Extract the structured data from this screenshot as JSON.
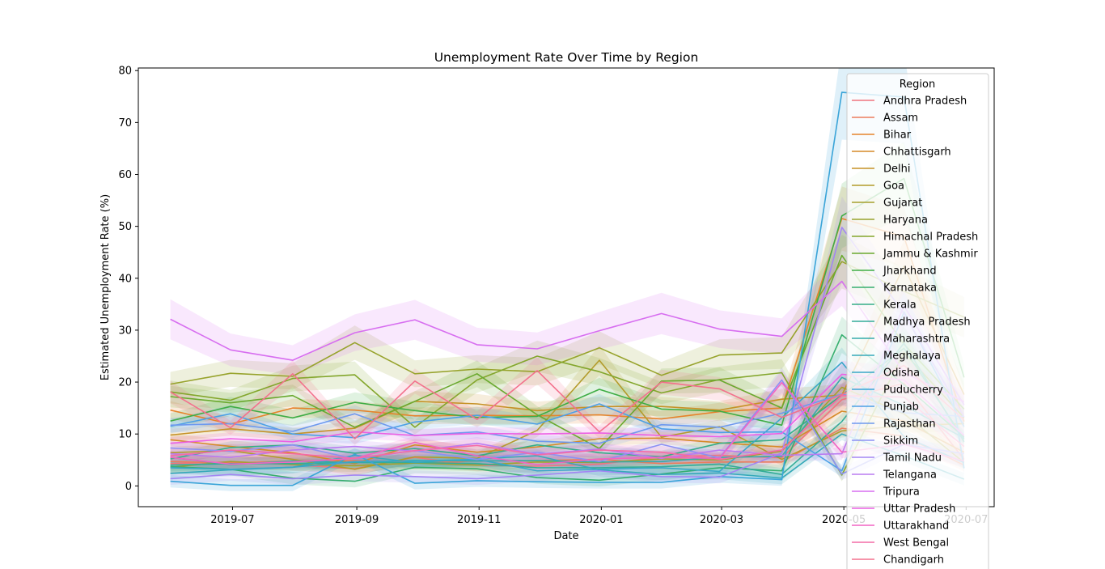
{
  "chart_data": {
    "type": "line",
    "title": "Unemployment Rate Over Time by Region",
    "xlabel": "Date",
    "ylabel": "Estimated Unemployment Rate (%)",
    "xlim": [
      "2019-05-15",
      "2020-07-15"
    ],
    "ylim": [
      -4,
      80.5
    ],
    "x_ticks": [
      "2019-07",
      "2019-09",
      "2019-11",
      "2020-01",
      "2020-03",
      "2020-05",
      "2020-07"
    ],
    "y_ticks": [
      0,
      10,
      20,
      30,
      40,
      50,
      60,
      70,
      80
    ],
    "grid": false,
    "legend": {
      "title": "Region",
      "placement": "right"
    },
    "x": [
      "2019-05-31",
      "2019-06-30",
      "2019-07-31",
      "2019-08-31",
      "2019-09-30",
      "2019-10-31",
      "2019-11-30",
      "2019-12-31",
      "2020-01-31",
      "2020-02-29",
      "2020-03-31",
      "2020-04-30",
      "2020-05-31",
      "2020-06-30"
    ],
    "series": [
      {
        "name": "Andhra Pradesh",
        "color": "#f0747f",
        "values": [
          4.3,
          4.6,
          4.1,
          3.3,
          5.5,
          4.0,
          3.8,
          4.2,
          5.6,
          5.9,
          5.4,
          16.6,
          19.8,
          5.1
        ]
      },
      {
        "name": "Assam",
        "color": "#ec7c5d",
        "values": [
          4.7,
          4.4,
          4.8,
          4.9,
          4.4,
          4.8,
          4.9,
          5.1,
          4.3,
          4.6,
          4.6,
          11.1,
          9.6,
          4.0
        ]
      },
      {
        "name": "Bihar",
        "color": "#e6832b",
        "values": [
          14.6,
          11.9,
          15.0,
          14.6,
          13.5,
          13.6,
          13.5,
          13.7,
          12.9,
          14.3,
          15.0,
          51.5,
          48.0,
          12.4
        ]
      },
      {
        "name": "Chhattisgarh",
        "color": "#d58a28",
        "values": [
          8.9,
          7.6,
          6.4,
          4.3,
          7.9,
          6.5,
          7.5,
          9.1,
          9.2,
          8.3,
          7.5,
          14.4,
          12.5,
          6.5
        ]
      },
      {
        "name": "Delhi",
        "color": "#c69227",
        "values": [
          9.8,
          11.0,
          10.0,
          11.1,
          16.3,
          15.8,
          14.5,
          15.3,
          15.3,
          14.6,
          16.7,
          17.5,
          42.3,
          17.6
        ]
      },
      {
        "name": "Goa",
        "color": "#b39b2b",
        "values": [
          6.4,
          6.8,
          5.1,
          3.2,
          5.6,
          5.3,
          10.7,
          24.2,
          9.4,
          11.4,
          5.1,
          10.6,
          11.6,
          12.0
        ]
      },
      {
        "name": "Gujarat",
        "color": "#a5a02d",
        "values": [
          3.6,
          4.7,
          4.1,
          3.9,
          4.4,
          4.0,
          4.6,
          4.5,
          5.2,
          5.0,
          6.7,
          19.0,
          13.9,
          4.5
        ]
      },
      {
        "name": "Haryana",
        "color": "#97a32c",
        "values": [
          19.6,
          21.7,
          21.1,
          27.6,
          21.6,
          22.5,
          22.0,
          26.6,
          21.3,
          25.2,
          25.6,
          43.2,
          37.5,
          32.5
        ]
      },
      {
        "name": "Himachal Pradesh",
        "color": "#83a62c",
        "values": [
          18.1,
          16.5,
          20.7,
          21.4,
          11.3,
          20.4,
          25.0,
          22.0,
          17.9,
          20.5,
          21.8,
          2.1,
          25.7,
          13.1
        ]
      },
      {
        "name": "Jammu & Kashmir",
        "color": "#6aa92f",
        "values": [
          17.2,
          16.0,
          17.4,
          11.3,
          16.3,
          21.6,
          13.7,
          7.2,
          20.2,
          20.4,
          15.0,
          44.4,
          27.3,
          14.8
        ]
      },
      {
        "name": "Jharkhand",
        "color": "#3fad45",
        "values": [
          12.5,
          15.3,
          13.1,
          16.1,
          14.5,
          13.2,
          13.4,
          18.6,
          14.8,
          14.4,
          11.7,
          52.0,
          59.2,
          20.9
        ]
      },
      {
        "name": "Karnataka",
        "color": "#36ae6f",
        "values": [
          3.7,
          3.2,
          1.5,
          0.9,
          3.6,
          3.3,
          1.6,
          1.1,
          2.3,
          3.5,
          2.9,
          29.1,
          19.5,
          9.4
        ]
      },
      {
        "name": "Kerala",
        "color": "#35ad87",
        "values": [
          5.2,
          7.4,
          7.9,
          6.3,
          7.2,
          5.8,
          7.9,
          6.4,
          5.6,
          8.2,
          8.9,
          17.5,
          26.5,
          9.0
        ]
      },
      {
        "name": "Madhya Pradesh",
        "color": "#34ac98",
        "values": [
          4.0,
          4.3,
          4.3,
          4.5,
          4.5,
          4.3,
          3.5,
          3.5,
          3.7,
          4.2,
          2.2,
          12.4,
          27.5,
          8.5
        ]
      },
      {
        "name": "Maharashtra",
        "color": "#35abab",
        "values": [
          5.5,
          4.1,
          4.8,
          4.5,
          4.9,
          4.8,
          4.9,
          4.6,
          4.7,
          5.5,
          5.7,
          20.9,
          15.5,
          9.2
        ]
      },
      {
        "name": "Meghalaya",
        "color": "#36a9b9",
        "values": [
          2.4,
          3.1,
          3.6,
          5.9,
          4.5,
          5.2,
          5.8,
          3.1,
          2.2,
          2.5,
          1.5,
          10.0,
          5.8,
          1.3
        ]
      },
      {
        "name": "Odisha",
        "color": "#39a7c8",
        "values": [
          3.5,
          3.2,
          3.6,
          4.7,
          4.8,
          5.1,
          2.9,
          3.2,
          3.5,
          2.8,
          13.1,
          23.8,
          9.5,
          4.5
        ]
      },
      {
        "name": "Puducherry",
        "color": "#3aa4d8",
        "values": [
          0.9,
          0.1,
          0.1,
          6.1,
          0.5,
          1.0,
          0.8,
          0.7,
          0.7,
          1.8,
          1.2,
          75.8,
          74.9,
          3.4
        ]
      },
      {
        "name": "Punjab",
        "color": "#4ca0e6",
        "values": [
          11.5,
          13.9,
          10.0,
          9.3,
          12.3,
          13.6,
          11.9,
          15.8,
          11.0,
          10.3,
          10.4,
          2.9,
          33.5,
          11.4
        ]
      },
      {
        "name": "Rajasthan",
        "color": "#6e99ee",
        "values": [
          11.7,
          12.0,
          10.5,
          13.9,
          9.7,
          10.4,
          8.6,
          8.2,
          11.8,
          11.3,
          14.0,
          17.7,
          14.1,
          13.4
        ]
      },
      {
        "name": "Sikkim",
        "color": "#8c90f3",
        "values": [
          7.3,
          6.7,
          7.9,
          5.2,
          6.8,
          5.1,
          6.5,
          4.7,
          8.0,
          5.4,
          20.4,
          2.3,
          8.0,
          6.2
        ]
      },
      {
        "name": "Tamil Nadu",
        "color": "#a386f3",
        "values": [
          1.4,
          2.2,
          1.4,
          2.1,
          1.8,
          1.4,
          2.1,
          2.9,
          1.8,
          1.7,
          6.3,
          49.8,
          33.2,
          13.3
        ]
      },
      {
        "name": "Telangana",
        "color": "#ba7bf1",
        "values": [
          6.2,
          5.5,
          6.9,
          7.6,
          6.7,
          8.2,
          6.1,
          7.1,
          5.3,
          6.9,
          5.9,
          6.2,
          34.7,
          15.6
        ]
      },
      {
        "name": "Tripura",
        "color": "#d76ef0",
        "values": [
          32.1,
          26.2,
          24.2,
          29.5,
          32.0,
          27.2,
          26.4,
          29.9,
          33.2,
          30.2,
          28.8,
          39.4,
          21.8,
          16.2
        ]
      },
      {
        "name": "Uttar Pradesh",
        "color": "#ec60e4",
        "values": [
          8.2,
          9.1,
          8.5,
          10.4,
          9.7,
          10.1,
          10.0,
          10.2,
          9.7,
          9.5,
          10.1,
          21.5,
          20.4,
          9.7
        ]
      },
      {
        "name": "Uttarakhand",
        "color": "#f264c3",
        "values": [
          5.5,
          4.2,
          4.6,
          5.3,
          8.4,
          5.8,
          4.1,
          5.2,
          5.5,
          5.3,
          19.9,
          6.5,
          8.0,
          4.8
        ]
      },
      {
        "name": "West Bengal",
        "color": "#f46ba6",
        "values": [
          5.8,
          6.9,
          6.2,
          5.3,
          6.8,
          7.8,
          6.0,
          6.9,
          6.5,
          5.1,
          6.9,
          17.4,
          17.1,
          7.6
        ]
      },
      {
        "name": "Chandigarh",
        "color": "#f3718d",
        "values": [
          18.1,
          11.2,
          21.6,
          9.1,
          20.2,
          12.8,
          22.2,
          10.4,
          20.0,
          18.7,
          13.2,
          17.6,
          23.2,
          12.7
        ]
      }
    ]
  }
}
